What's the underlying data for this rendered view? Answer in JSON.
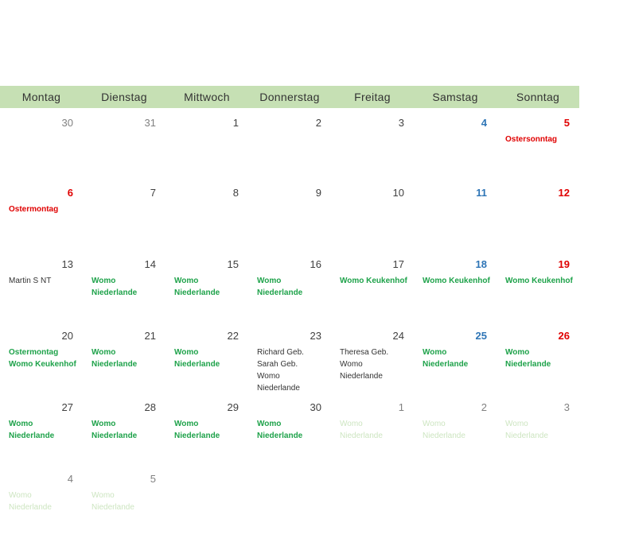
{
  "header": {
    "days": [
      "Montag",
      "Dienstag",
      "Mittwoch",
      "Donnerstag",
      "Freitag",
      "Samstag",
      "Sonntag"
    ]
  },
  "colors": {
    "header_bg": "#c6e0b4",
    "saturday": "#2e75b6",
    "sunday": "#e00000",
    "event_green": "#1ea24a",
    "event_red": "#e00000",
    "event_faded": "#cde5c1"
  },
  "weeks": [
    {
      "days": [
        {
          "num": "30",
          "type": "other",
          "events": []
        },
        {
          "num": "31",
          "type": "other",
          "events": []
        },
        {
          "num": "1",
          "type": "normal",
          "events": []
        },
        {
          "num": "2",
          "type": "normal",
          "events": []
        },
        {
          "num": "3",
          "type": "normal",
          "events": []
        },
        {
          "num": "4",
          "type": "sat",
          "events": []
        },
        {
          "num": "5",
          "type": "sun",
          "events": [
            {
              "lines": [
                "Ostersonntag"
              ],
              "style": "red"
            }
          ]
        }
      ]
    },
    {
      "days": [
        {
          "num": "6",
          "type": "sun",
          "events": [
            {
              "lines": [
                "Ostermontag"
              ],
              "style": "red"
            }
          ]
        },
        {
          "num": "7",
          "type": "normal",
          "events": []
        },
        {
          "num": "8",
          "type": "normal",
          "events": []
        },
        {
          "num": "9",
          "type": "normal",
          "events": []
        },
        {
          "num": "10",
          "type": "normal",
          "events": []
        },
        {
          "num": "11",
          "type": "sat",
          "events": []
        },
        {
          "num": "12",
          "type": "sun",
          "events": []
        }
      ]
    },
    {
      "days": [
        {
          "num": "13",
          "type": "normal",
          "events": [
            {
              "lines": [
                "Martin S NT"
              ],
              "style": "black"
            }
          ]
        },
        {
          "num": "14",
          "type": "normal",
          "events": [
            {
              "lines": [
                "Womo",
                "Niederlande"
              ],
              "style": "green"
            }
          ]
        },
        {
          "num": "15",
          "type": "normal",
          "events": [
            {
              "lines": [
                "Womo",
                "Niederlande"
              ],
              "style": "green"
            }
          ]
        },
        {
          "num": "16",
          "type": "normal",
          "events": [
            {
              "lines": [
                "Womo",
                "Niederlande"
              ],
              "style": "green"
            }
          ]
        },
        {
          "num": "17",
          "type": "normal",
          "events": [
            {
              "lines": [
                "Womo Keukenhof"
              ],
              "style": "green"
            }
          ]
        },
        {
          "num": "18",
          "type": "sat",
          "events": [
            {
              "lines": [
                "Womo Keukenhof"
              ],
              "style": "green"
            }
          ]
        },
        {
          "num": "19",
          "type": "sun",
          "events": [
            {
              "lines": [
                "Womo Keukenhof"
              ],
              "style": "green"
            }
          ]
        }
      ]
    },
    {
      "days": [
        {
          "num": "20",
          "type": "normal",
          "events": [
            {
              "lines": [
                "Ostermontag"
              ],
              "style": "green"
            },
            {
              "lines": [
                "Womo Keukenhof"
              ],
              "style": "green"
            }
          ]
        },
        {
          "num": "21",
          "type": "normal",
          "events": [
            {
              "lines": [
                "Womo",
                "Niederlande"
              ],
              "style": "green"
            }
          ]
        },
        {
          "num": "22",
          "type": "normal",
          "events": [
            {
              "lines": [
                "Womo",
                "Niederlande"
              ],
              "style": "green"
            }
          ]
        },
        {
          "num": "23",
          "type": "normal",
          "events": [
            {
              "lines": [
                "Richard Geb."
              ],
              "style": "black"
            },
            {
              "lines": [
                "Sarah Geb."
              ],
              "style": "black"
            },
            {
              "lines": [
                "Womo",
                "Niederlande"
              ],
              "style": "black"
            }
          ]
        },
        {
          "num": "24",
          "type": "normal",
          "events": [
            {
              "lines": [
                "Theresa Geb."
              ],
              "style": "black"
            },
            {
              "lines": [
                "Womo",
                "Niederlande"
              ],
              "style": "black"
            }
          ]
        },
        {
          "num": "25",
          "type": "sat",
          "events": [
            {
              "lines": [
                "Womo",
                "Niederlande"
              ],
              "style": "green"
            }
          ]
        },
        {
          "num": "26",
          "type": "sun",
          "events": [
            {
              "lines": [
                "Womo",
                "Niederlande"
              ],
              "style": "green"
            }
          ]
        }
      ]
    },
    {
      "days": [
        {
          "num": "27",
          "type": "normal",
          "events": [
            {
              "lines": [
                "Womo",
                "Niederlande"
              ],
              "style": "green"
            }
          ]
        },
        {
          "num": "28",
          "type": "normal",
          "events": [
            {
              "lines": [
                "Womo",
                "Niederlande"
              ],
              "style": "green"
            }
          ]
        },
        {
          "num": "29",
          "type": "normal",
          "events": [
            {
              "lines": [
                "Womo",
                "Niederlande"
              ],
              "style": "green"
            }
          ]
        },
        {
          "num": "30",
          "type": "normal",
          "events": [
            {
              "lines": [
                "Womo",
                "Niederlande"
              ],
              "style": "green"
            }
          ]
        },
        {
          "num": "1",
          "type": "other",
          "events": [
            {
              "lines": [
                "Womo",
                "Niederlande"
              ],
              "style": "pale"
            }
          ]
        },
        {
          "num": "2",
          "type": "other",
          "events": [
            {
              "lines": [
                "Womo",
                "Niederlande"
              ],
              "style": "pale"
            }
          ]
        },
        {
          "num": "3",
          "type": "other",
          "events": [
            {
              "lines": [
                "Womo",
                "Niederlande"
              ],
              "style": "pale"
            }
          ]
        }
      ]
    },
    {
      "days": [
        {
          "num": "4",
          "type": "other",
          "events": [
            {
              "lines": [
                "Womo",
                "Niederlande"
              ],
              "style": "pale"
            }
          ]
        },
        {
          "num": "5",
          "type": "other",
          "events": [
            {
              "lines": [
                "Womo",
                "Niederlande"
              ],
              "style": "pale"
            }
          ]
        }
      ]
    }
  ]
}
